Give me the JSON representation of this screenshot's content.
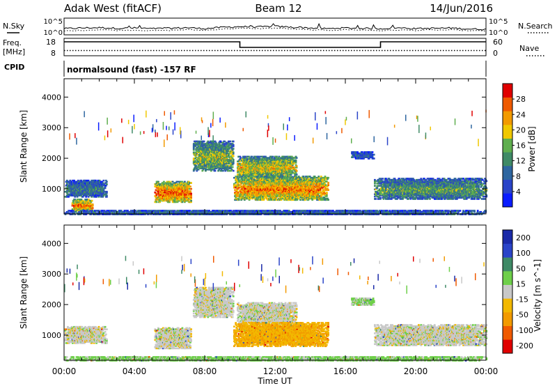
{
  "header": {
    "site": "Adak West (fitACF)",
    "beam": "Beam 12",
    "date": "14/Jun/2016"
  },
  "status_panels": {
    "nsky_label": "N.Sky",
    "nsearch_label": "N.Search",
    "noise_ticks": [
      "10^5",
      "10^0"
    ],
    "freq_label": "Freq.",
    "freq_unit": "[MHz]",
    "freq_ticks": [
      "18",
      "8"
    ],
    "nave_label": "Nave",
    "nave_ticks": [
      "60",
      "0"
    ],
    "cpid_label": "CPID",
    "cpid_text": "normalsound (fast) -157 RF"
  },
  "colors": {
    "power_scale": [
      "#0a1cff",
      "#2a44c8",
      "#2e66a0",
      "#3f8a66",
      "#5fae4e",
      "#f0c800",
      "#f29a00",
      "#ef5a00",
      "#e00000"
    ],
    "velocity_scale": [
      "#e00000",
      "#f05a00",
      "#f29a00",
      "#f2b800",
      "#c8c8c8",
      "#6ecf4a",
      "#3f8a66",
      "#2a44c8",
      "#1a2aa8"
    ]
  },
  "chart_data": [
    {
      "type": "line",
      "name": "noise",
      "ylabel_left": "N.Sky",
      "ylabel_right": "N.Search",
      "yticks": [
        "10^5",
        "10^0"
      ],
      "x_hours": [
        0,
        1,
        2,
        3,
        4,
        5,
        6,
        7,
        8,
        9,
        10,
        11,
        12,
        13,
        14,
        15,
        16,
        17,
        18,
        19,
        20,
        21,
        22,
        23,
        24
      ],
      "series": [
        {
          "values": [
            1.6,
            1.8,
            1.9,
            1.7,
            1.8,
            1.6,
            1.7,
            1.9,
            1.6,
            2.0,
            2.2,
            2.1,
            2.3,
            2.0,
            1.8,
            1.6,
            1.8,
            1.7,
            1.6,
            1.8,
            1.6,
            1.7,
            1.8,
            1.5,
            1.4
          ]
        },
        {
          "values": [
            1.0,
            1.2,
            1.4,
            1.2,
            1.3,
            1.1,
            1.2,
            1.4,
            1.2,
            1.6,
            1.8,
            1.7,
            1.9,
            1.6,
            1.3,
            1.2,
            1.4,
            1.3,
            1.1,
            1.3,
            1.2,
            1.3,
            1.3,
            1.1,
            1.0
          ]
        }
      ]
    },
    {
      "type": "line",
      "name": "frequency",
      "ylabel_left": "Freq. [MHz]",
      "ylabel_right": "Nave",
      "yticks_left": [
        8,
        18
      ],
      "yticks_right": [
        0,
        60
      ],
      "series": [
        {
          "points": [
            [
              0,
              16
            ],
            [
              10,
              16
            ],
            [
              10,
              12.8
            ],
            [
              18,
              12.8
            ],
            [
              18,
              16
            ],
            [
              24,
              16
            ]
          ]
        },
        {
          "points": [
            [
              0,
              11
            ],
            [
              24,
              11
            ]
          ]
        }
      ]
    },
    {
      "type": "heatmap",
      "name": "power",
      "xlabel": "",
      "ylabel": "Slant Range [km]",
      "xlim": [
        0,
        24
      ],
      "ylim": [
        180,
        4600
      ],
      "yticks": [
        1000,
        2000,
        3000,
        4000
      ],
      "colorbar_label": "Power [dB]",
      "colorbar_ticks": [
        4,
        8,
        12,
        16,
        20,
        24,
        28
      ],
      "colorbar_range": [
        0,
        32
      ],
      "regions": [
        {
          "t0": 0.0,
          "t1": 2.4,
          "r0": 750,
          "r1": 1320,
          "level": 0.35
        },
        {
          "t0": 0.4,
          "t1": 1.6,
          "r0": 300,
          "r1": 700,
          "level": 0.8
        },
        {
          "t0": 5.1,
          "t1": 7.2,
          "r0": 580,
          "r1": 1280,
          "level": 0.85
        },
        {
          "t0": 7.3,
          "t1": 9.6,
          "r0": 1600,
          "r1": 2600,
          "level": 0.55
        },
        {
          "t0": 9.8,
          "t1": 13.2,
          "r0": 1400,
          "r1": 2100,
          "level": 0.65
        },
        {
          "t0": 9.6,
          "t1": 15.0,
          "r0": 650,
          "r1": 1450,
          "level": 0.8
        },
        {
          "t0": 16.3,
          "t1": 17.6,
          "r0": 2000,
          "r1": 2250,
          "level": 0.25
        },
        {
          "t0": 17.6,
          "t1": 24.0,
          "r0": 680,
          "r1": 1380,
          "level": 0.45
        },
        {
          "t0": 0.0,
          "t1": 24.0,
          "r0": 180,
          "r1": 330,
          "level": 0.3
        }
      ]
    },
    {
      "type": "heatmap",
      "name": "velocity",
      "xlabel": "Time UT",
      "ylabel": "Slant Range [km]",
      "xlim": [
        0,
        24
      ],
      "ylim": [
        180,
        4600
      ],
      "xticks": [
        "00:00",
        "04:00",
        "08:00",
        "12:00",
        "16:00",
        "20:00",
        "00:00"
      ],
      "yticks": [
        1000,
        2000,
        3000,
        4000
      ],
      "colorbar_label": "Velocity [m s^-1]",
      "colorbar_ticks": [
        "-200",
        "-100",
        "-50",
        "-15",
        "15",
        "50",
        "100",
        "200"
      ],
      "regions": [
        {
          "t0": 0.0,
          "t1": 2.4,
          "r0": 750,
          "r1": 1320,
          "v": 0.0
        },
        {
          "t0": 5.1,
          "t1": 7.2,
          "r0": 580,
          "r1": 1280,
          "v": 0.0
        },
        {
          "t0": 7.3,
          "t1": 9.6,
          "r0": 1600,
          "r1": 2600,
          "v": 0.0
        },
        {
          "t0": 9.8,
          "t1": 13.2,
          "r0": 1400,
          "r1": 2100,
          "v": 0.0
        },
        {
          "t0": 9.6,
          "t1": 15.0,
          "r0": 650,
          "r1": 1450,
          "v": -45
        },
        {
          "t0": 16.3,
          "t1": 17.6,
          "r0": 2000,
          "r1": 2250,
          "v": 20
        },
        {
          "t0": 17.6,
          "t1": 24.0,
          "r0": 680,
          "r1": 1380,
          "v": 0.0
        },
        {
          "t0": 0.0,
          "t1": 24.0,
          "r0": 180,
          "r1": 330,
          "v": 25
        }
      ]
    }
  ]
}
